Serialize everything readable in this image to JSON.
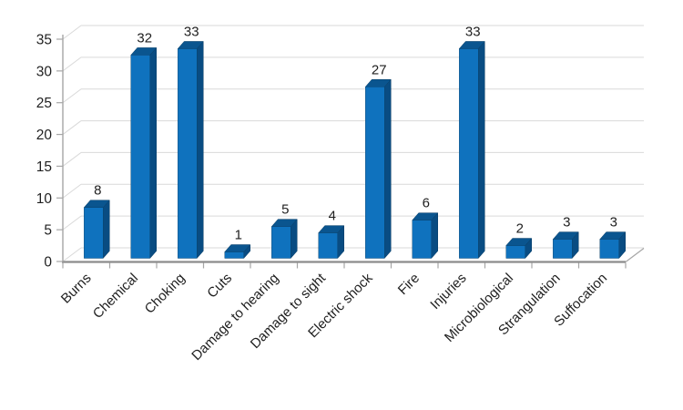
{
  "chart_data": {
    "type": "bar",
    "style": "3d-column",
    "title": "",
    "xlabel": "",
    "ylabel": "",
    "categories": [
      "Burns",
      "Chemical",
      "Choking",
      "Cuts",
      "Damage to hearing",
      "Damage to sight",
      "Electric shock",
      "Fire",
      "Injuries",
      "Microbiological",
      "Strangulation",
      "Suffocation"
    ],
    "values": [
      8,
      32,
      33,
      1,
      5,
      4,
      27,
      6,
      33,
      2,
      3,
      3
    ],
    "show_data_labels": true,
    "ylim": [
      0,
      35
    ],
    "ytick_step": 5,
    "ytick_labels": [
      "0",
      "5",
      "10",
      "15",
      "20",
      "25",
      "30",
      "35"
    ],
    "grid": true,
    "legend": false,
    "colors": {
      "bar_front": "#0F72BE",
      "bar_top": "#0A558F",
      "bar_side": "#094C82",
      "bar_edge": "#083D66",
      "gridline": "#D9D9D9",
      "axis_line": "#A6A6A6",
      "axis_line_bottom": "#8C8C8C",
      "label_text": "#1F1F1F",
      "background": "#FFFFFF"
    }
  }
}
